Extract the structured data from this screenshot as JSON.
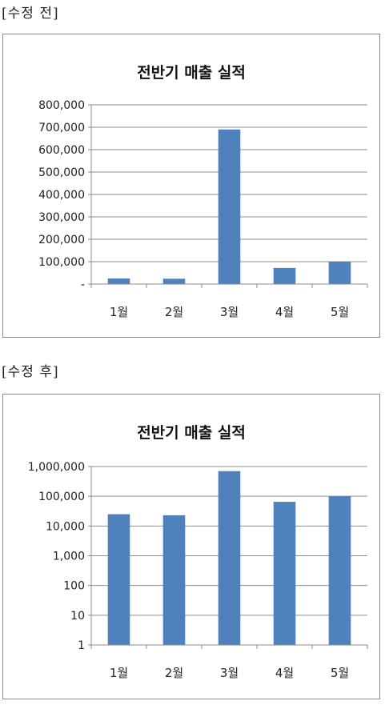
{
  "labels": {
    "before": "[수정 전]",
    "after": "[수정 후]"
  },
  "chart_data": [
    {
      "type": "bar",
      "title": "전반기 매출 실적",
      "categories": [
        "1월",
        "2월",
        "3월",
        "4월",
        "5월"
      ],
      "values": [
        25000,
        24000,
        690000,
        72000,
        100000
      ],
      "ylim": [
        0,
        800000
      ],
      "yscale": "linear",
      "yticks": [
        "-",
        "100,000",
        "200,000",
        "300,000",
        "400,000",
        "500,000",
        "600,000",
        "700,000",
        "800,000"
      ],
      "grid": true,
      "bar_color": "#4f81bd"
    },
    {
      "type": "bar",
      "title": "전반기 매출 실적",
      "categories": [
        "1월",
        "2월",
        "3월",
        "4월",
        "5월"
      ],
      "values": [
        25000,
        23000,
        700000,
        65000,
        100000
      ],
      "ylim": [
        1,
        1000000
      ],
      "yscale": "log",
      "yticks": [
        "1",
        "10",
        "100",
        "1,000",
        "10,000",
        "100,000",
        "1,000,000"
      ],
      "grid": true,
      "bar_color": "#4f81bd"
    }
  ]
}
